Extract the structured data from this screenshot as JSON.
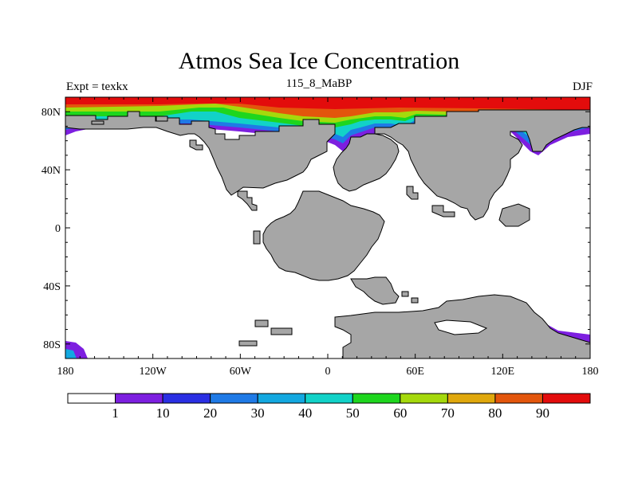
{
  "title": "Atmos Sea Ice Concentration",
  "subtitle": "115_8_MaBP",
  "left_label": "Expt = texkx",
  "right_label": "DJF",
  "map": {
    "x_ticks": [
      {
        "lon": -180,
        "label": "180"
      },
      {
        "lon": -120,
        "label": "120W"
      },
      {
        "lon": -60,
        "label": "60W"
      },
      {
        "lon": 0,
        "label": "0"
      },
      {
        "lon": 60,
        "label": "60E"
      },
      {
        "lon": 120,
        "label": "120E"
      },
      {
        "lon": 180,
        "label": "180"
      }
    ],
    "y_ticks": [
      {
        "lat": 80,
        "label": "80N"
      },
      {
        "lat": 40,
        "label": "40N"
      },
      {
        "lat": 0,
        "label": "0"
      },
      {
        "lat": -40,
        "label": "40S"
      },
      {
        "lat": -80,
        "label": "80S"
      }
    ],
    "lon_range": [
      -180,
      180
    ],
    "lat_range": [
      -90,
      90
    ],
    "land_color": "#a6a6a6"
  },
  "colorbar": {
    "colors": [
      "#ffffff",
      "#7d1fe0",
      "#2a2fe3",
      "#1f7ae6",
      "#13a8e0",
      "#12d2c8",
      "#1ed61e",
      "#a5d90c",
      "#e0a80c",
      "#e3560c",
      "#e30c0c"
    ],
    "labels": [
      "1",
      "10",
      "20",
      "30",
      "40",
      "50",
      "60",
      "70",
      "80",
      "90"
    ]
  }
}
